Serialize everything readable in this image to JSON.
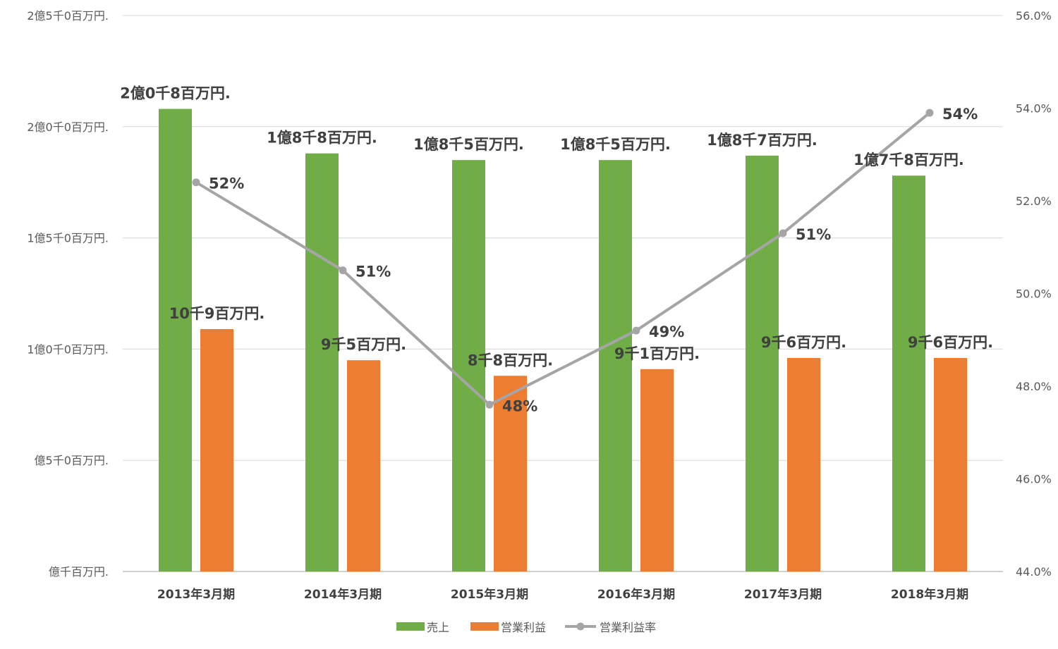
{
  "chart_data": {
    "type": "bar",
    "categories": [
      "2013年3月期",
      "2014年3月期",
      "2015年3月期",
      "2016年3月期",
      "2017年3月期",
      "2018年3月期"
    ],
    "series": [
      {
        "name": "売上",
        "type": "bar",
        "axis": "left",
        "color": "#70AD47",
        "values": [
          208,
          188,
          185,
          185,
          187,
          178
        ],
        "labels": [
          "2億0千8百万円.",
          "1億8千8百万円.",
          "1億8千5百万円.",
          "1億8千5百万円.",
          "1億8千7百万円.",
          "1億7千8百万円."
        ]
      },
      {
        "name": "営業利益",
        "type": "bar",
        "axis": "left",
        "color": "#ED7D31",
        "values": [
          109,
          95,
          88,
          91,
          96,
          96
        ],
        "labels": [
          "10千9百万円.",
          "9千5百万円.",
          "8千8百万円.",
          "9千1百万円.",
          "9千6百万円.",
          "9千6百万円."
        ]
      },
      {
        "name": "営業利益率",
        "type": "line",
        "axis": "right",
        "color": "#A5A5A5",
        "values": [
          52.4,
          50.5,
          47.6,
          49.2,
          51.3,
          53.9
        ],
        "labels": [
          "52%",
          "51%",
          "48%",
          "49%",
          "51%",
          "54%"
        ]
      }
    ],
    "left_axis": {
      "unit": "百万円",
      "ylim": [
        0,
        250
      ],
      "ticks": [
        0,
        50,
        100,
        150,
        200,
        250
      ],
      "tick_labels": [
        "億千百万円.",
        "億5千0百万円.",
        "1億0千0百万円.",
        "1億5千0百万円.",
        "2億0千0百万円.",
        "2億5千0百万円."
      ]
    },
    "right_axis": {
      "unit": "%",
      "ylim": [
        44,
        56
      ],
      "ticks": [
        44,
        46,
        48,
        50,
        52,
        54,
        56
      ],
      "tick_labels": [
        "44.0%",
        "46.0%",
        "48.0%",
        "50.0%",
        "52.0%",
        "54.0%",
        "56.0%"
      ]
    },
    "grid": true,
    "legend_position": "bottom"
  }
}
